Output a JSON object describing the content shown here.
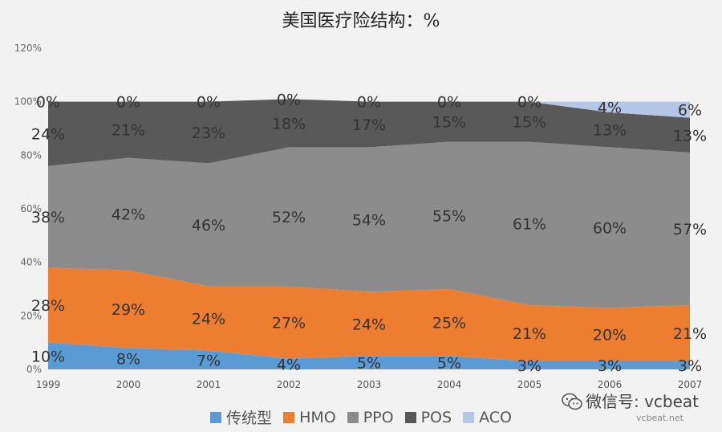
{
  "chart_data": {
    "type": "area",
    "title": "美国医疗险结构：%",
    "categories": [
      "1999",
      "2000",
      "2001",
      "2002",
      "2003",
      "2004",
      "2005",
      "2006",
      "2007"
    ],
    "ylim": [
      0,
      120
    ],
    "yticks": [
      "0%",
      "20%",
      "40%",
      "60%",
      "80%",
      "100%",
      "120%"
    ],
    "stacked": true,
    "grid": false,
    "legend_position": "bottom",
    "series": [
      {
        "name": "传统型",
        "color": "#5b9bd5",
        "values": [
          10,
          8,
          7,
          4,
          5,
          5,
          3,
          3,
          3
        ],
        "labels": [
          "10%",
          "8%",
          "7%",
          "4%",
          "5%",
          "5%",
          "3%",
          "3%",
          "3%"
        ]
      },
      {
        "name": "HMO",
        "color": "#ed7d31",
        "values": [
          28,
          29,
          24,
          27,
          24,
          25,
          21,
          20,
          21
        ],
        "labels": [
          "28%",
          "29%",
          "24%",
          "27%",
          "24%",
          "25%",
          "21%",
          "20%",
          "21%"
        ]
      },
      {
        "name": "PPO",
        "color": "#8c8c8c",
        "values": [
          38,
          42,
          46,
          52,
          54,
          55,
          61,
          60,
          57
        ],
        "labels": [
          "38%",
          "42%",
          "46%",
          "52%",
          "54%",
          "55%",
          "61%",
          "60%",
          "57%"
        ]
      },
      {
        "name": "POS",
        "color": "#595959",
        "values": [
          24,
          21,
          23,
          18,
          17,
          15,
          15,
          13,
          13
        ],
        "labels": [
          "24%",
          "21%",
          "23%",
          "18%",
          "17%",
          "15%",
          "15%",
          "13%",
          "13%"
        ]
      },
      {
        "name": "ACO",
        "color": "#b4c7e7",
        "values": [
          0,
          0,
          0,
          0,
          0,
          0,
          0,
          4,
          6
        ],
        "labels": [
          "0%",
          "0%",
          "0%",
          "0%",
          "0%",
          "0%",
          "0%",
          "4%",
          "6%"
        ]
      }
    ]
  },
  "watermark": {
    "text": "微信号: vcbeat",
    "domain": "vcbeat.net",
    "icon": "wechat-icon"
  }
}
